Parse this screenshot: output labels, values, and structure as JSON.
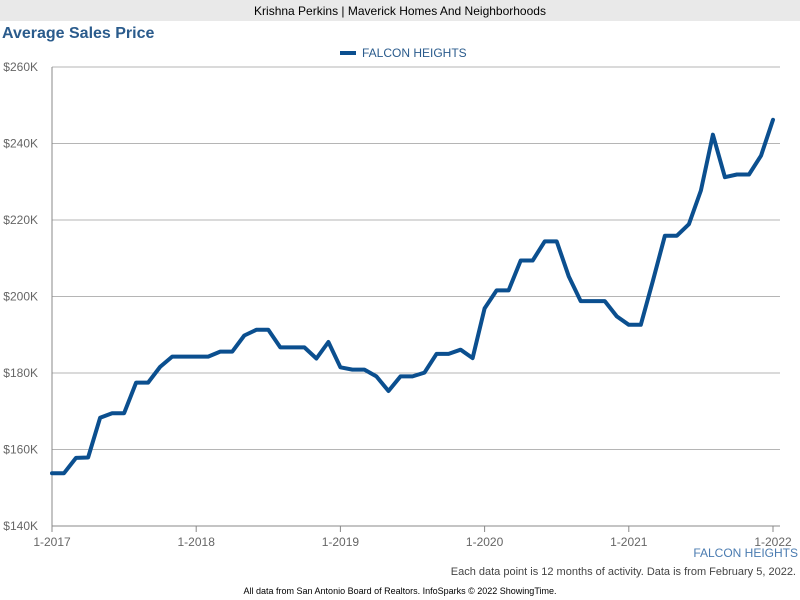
{
  "header": {
    "agent_line": "Krishna Perkins | Maverick Homes And Neighborhoods"
  },
  "footer": {
    "area_label": "FALCON HEIGHTS",
    "note": "Each data point is 12 months of activity. Data is from February 5, 2022.",
    "source": "All data from San Antonio Board of Realtors. InfoSparks © 2022 ShowingTime."
  },
  "colors": {
    "series": "#0b4f8f",
    "title": "#2a5b8c",
    "grid": "#b5b5b5",
    "axis": "#888888"
  },
  "chart_data": {
    "type": "line",
    "title": "Average Sales Price",
    "legend_position": "top-center",
    "grid": true,
    "ylim": [
      140000,
      260000
    ],
    "yticks": [
      140000,
      160000,
      180000,
      200000,
      220000,
      240000,
      260000
    ],
    "ytick_labels": [
      "$140K",
      "$160K",
      "$180K",
      "$200K",
      "$220K",
      "$240K",
      "$260K"
    ],
    "xticks": [
      "2017-01",
      "2018-01",
      "2019-01",
      "2020-01",
      "2021-01",
      "2022-01"
    ],
    "xtick_labels": [
      "1-2017",
      "1-2018",
      "1-2019",
      "1-2020",
      "1-2021",
      "1-2022"
    ],
    "x": [
      "2017-01",
      "2017-02",
      "2017-03",
      "2017-04",
      "2017-05",
      "2017-06",
      "2017-07",
      "2017-08",
      "2017-09",
      "2017-10",
      "2017-11",
      "2017-12",
      "2018-01",
      "2018-02",
      "2018-03",
      "2018-04",
      "2018-05",
      "2018-06",
      "2018-07",
      "2018-08",
      "2018-09",
      "2018-10",
      "2018-11",
      "2018-12",
      "2019-01",
      "2019-02",
      "2019-03",
      "2019-04",
      "2019-05",
      "2019-06",
      "2019-07",
      "2019-08",
      "2019-09",
      "2019-10",
      "2019-11",
      "2019-12",
      "2020-01",
      "2020-02",
      "2020-03",
      "2020-04",
      "2020-05",
      "2020-06",
      "2020-07",
      "2020-08",
      "2020-09",
      "2020-10",
      "2020-11",
      "2020-12",
      "2021-01",
      "2021-02",
      "2021-03",
      "2021-04",
      "2021-05",
      "2021-06",
      "2021-07",
      "2021-08",
      "2021-09",
      "2021-10",
      "2021-11",
      "2021-12",
      "2022-01"
    ],
    "series": [
      {
        "name": "FALCON HEIGHTS",
        "values": [
          153800,
          153800,
          157800,
          157900,
          168300,
          169500,
          169500,
          177500,
          177500,
          181600,
          184300,
          184300,
          184300,
          184300,
          185600,
          185600,
          189800,
          191300,
          191300,
          186700,
          186700,
          186700,
          183800,
          188100,
          181500,
          180900,
          180900,
          179100,
          175300,
          179100,
          179100,
          180100,
          185000,
          185000,
          186100,
          183900,
          196900,
          201600,
          201600,
          209400,
          209400,
          214400,
          214400,
          205300,
          198800,
          198800,
          198800,
          194800,
          192600,
          192600,
          204000,
          215900,
          215900,
          218900,
          227700,
          242300,
          231200,
          231900,
          231900,
          236800,
          246200
        ]
      }
    ]
  }
}
